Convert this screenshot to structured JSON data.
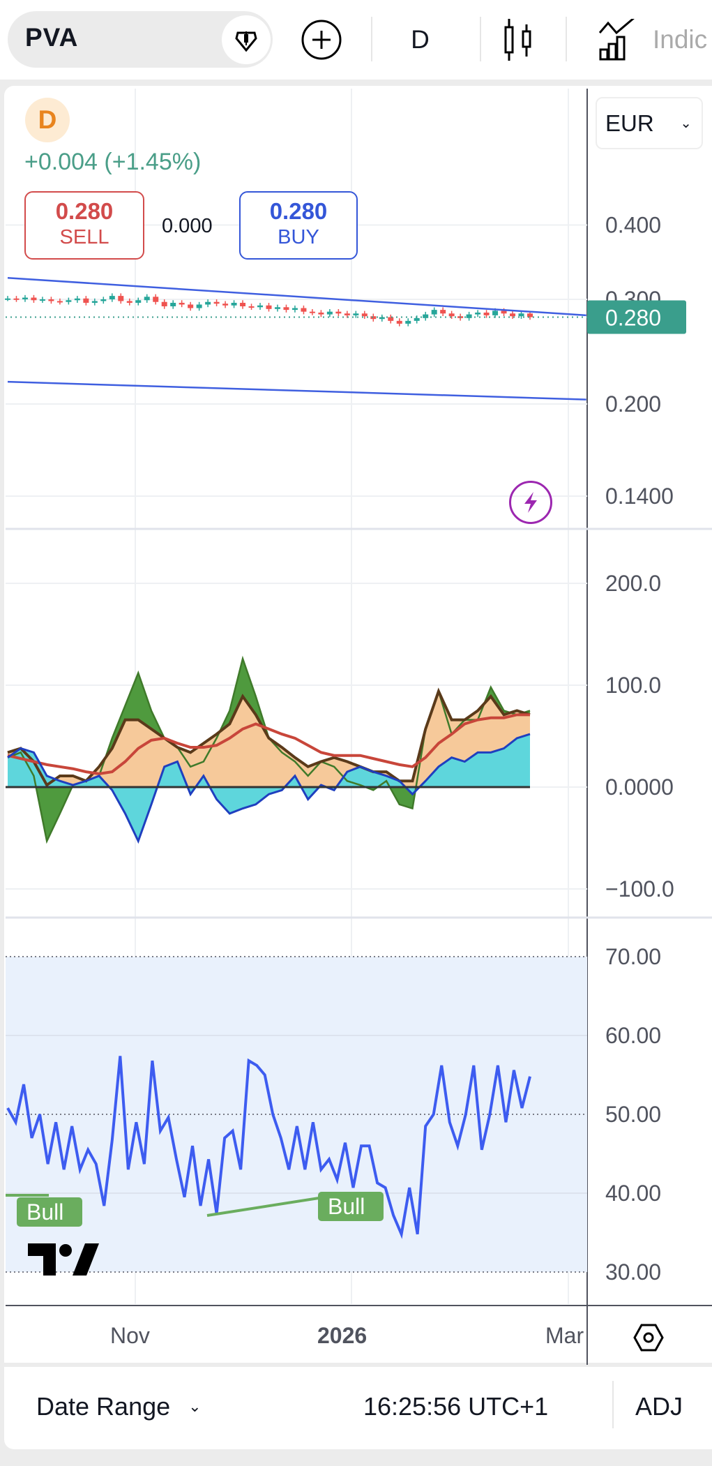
{
  "toolbar": {
    "symbol": "PVA",
    "interval": "D",
    "indicators_label": "Indic",
    "icons": [
      "diamond-icon",
      "plus-circle-icon",
      "candles-icon",
      "indicators-icon"
    ]
  },
  "legend": {
    "badge": "D",
    "change": "+0.004 (+1.45%)",
    "sell_price": "0.280",
    "sell_label": "SELL",
    "spread": "0.000",
    "buy_price": "0.280",
    "buy_label": "BUY"
  },
  "currency": "EUR",
  "colors": {
    "up": "#26a69a",
    "down": "#ef5350",
    "sell": "#d24b4b",
    "buy": "#3456d8",
    "change": "#4a9e88",
    "price_badge": "#3a9e8c",
    "trendline": "#3f5fe0",
    "rsi": "#3d5cf0",
    "divergence": "#6aad5e",
    "lightning": "#9c27b0"
  },
  "chart_data": [
    {
      "type": "candlestick",
      "pane": "price",
      "scale": "log",
      "x_range": [
        "2025-09-26",
        "2026-03-08"
      ],
      "y_ticks": [
        "0.400",
        "0.300",
        "0.200",
        "0.1400"
      ],
      "last_price": "0.280",
      "closes": [
        0.301,
        0.3,
        0.302,
        0.299,
        0.3,
        0.298,
        0.297,
        0.299,
        0.301,
        0.296,
        0.298,
        0.3,
        0.304,
        0.298,
        0.296,
        0.299,
        0.303,
        0.297,
        0.292,
        0.296,
        0.294,
        0.29,
        0.294,
        0.297,
        0.295,
        0.293,
        0.296,
        0.292,
        0.291,
        0.293,
        0.289,
        0.291,
        0.288,
        0.29,
        0.286,
        0.285,
        0.283,
        0.286,
        0.284,
        0.282,
        0.284,
        0.281,
        0.278,
        0.28,
        0.276,
        0.273,
        0.276,
        0.279,
        0.283,
        0.288,
        0.284,
        0.281,
        0.279,
        0.283,
        0.285,
        0.282,
        0.287,
        0.284,
        0.281,
        0.284,
        0.28
      ],
      "trendlines": [
        {
          "from": [
            "2025-09-26",
            0.326
          ],
          "to": [
            "2026-03-08",
            0.282
          ]
        },
        {
          "from": [
            "2025-09-26",
            0.218
          ],
          "to": [
            "2026-03-08",
            0.2035
          ]
        }
      ]
    },
    {
      "type": "area",
      "pane": "oscillator",
      "x_range": [
        "2025-09-26",
        "2026-02-20"
      ],
      "y_ticks": [
        "200.0",
        "100.0",
        "0.0000",
        "−100.0"
      ],
      "series": [
        {
          "color": "#4a9a3a",
          "values": [
            29,
            34,
            11,
            -53,
            -26,
            2,
            6,
            11,
            48,
            80,
            112,
            75,
            48,
            39,
            20,
            25,
            48,
            75,
            126,
            89,
            48,
            34,
            25,
            11,
            25,
            20,
            6,
            2,
            -3,
            6,
            -17,
            -21,
            57,
            94,
            52,
            66,
            66,
            98,
            75,
            71,
            75
          ]
        },
        {
          "color": "#5a3a1a",
          "values": [
            34,
            38,
            25,
            2,
            11,
            11,
            6,
            20,
            38,
            66,
            66,
            57,
            48,
            39,
            34,
            43,
            52,
            62,
            89,
            71,
            48,
            39,
            29,
            20,
            25,
            29,
            25,
            20,
            15,
            15,
            6,
            6,
            57,
            94,
            66,
            66,
            75,
            89,
            71,
            75,
            71
          ]
        },
        {
          "color": "#c8463a",
          "values": [
            31,
            28,
            25,
            22,
            20,
            18,
            15,
            13,
            15,
            25,
            38,
            46,
            48,
            43,
            39,
            39,
            41,
            48,
            57,
            62,
            57,
            52,
            48,
            41,
            34,
            31,
            31,
            31,
            28,
            25,
            22,
            20,
            29,
            43,
            52,
            62,
            66,
            68,
            68,
            71,
            71
          ]
        },
        {
          "color": "#1f3fbf",
          "values": [
            29,
            38,
            34,
            11,
            6,
            2,
            6,
            11,
            -3,
            -26,
            -53,
            -17,
            20,
            25,
            -7,
            11,
            -12,
            -26,
            -21,
            -17,
            -7,
            -3,
            11,
            -12,
            2,
            -3,
            15,
            20,
            15,
            11,
            6,
            -7,
            6,
            20,
            29,
            25,
            34,
            34,
            38,
            48,
            52
          ]
        }
      ]
    },
    {
      "type": "line",
      "pane": "rsi",
      "x_range": [
        "2025-09-26",
        "2026-02-20"
      ],
      "y_ticks": [
        "70.00",
        "60.00",
        "50.00",
        "40.00",
        "30.00"
      ],
      "band": [
        30,
        70
      ],
      "series": [
        {
          "color": "#3d5cf0",
          "values": [
            50.8,
            49,
            53.8,
            47,
            50,
            43.7,
            49,
            43,
            48.5,
            43,
            45.5,
            43.7,
            38.4,
            46.7,
            57.4,
            43,
            49,
            43.7,
            56.8,
            47.9,
            49.6,
            44.3,
            39.5,
            46,
            38.4,
            44.3,
            37.4,
            47,
            47.9,
            43,
            56.8,
            56.2,
            55,
            50,
            47,
            43,
            48.5,
            43,
            49,
            43,
            44.3,
            41.7,
            46.4,
            40.7,
            46,
            46,
            41.3,
            40.7,
            37.2,
            34.8,
            40.7,
            34.8,
            48.5,
            50,
            56.2,
            49,
            46,
            50,
            56.2,
            45.5,
            50,
            56.2,
            49,
            55.6,
            50.8,
            54.8
          ]
        }
      ],
      "annotations": [
        {
          "text": "Bull"
        },
        {
          "text": "Bull"
        }
      ]
    }
  ],
  "x_axis": {
    "ticks": [
      "Nov",
      "2026",
      "Mar"
    ]
  },
  "footer": {
    "date_range": "Date Range",
    "time": "16:25:56 UTC+1",
    "adj": "ADJ"
  }
}
